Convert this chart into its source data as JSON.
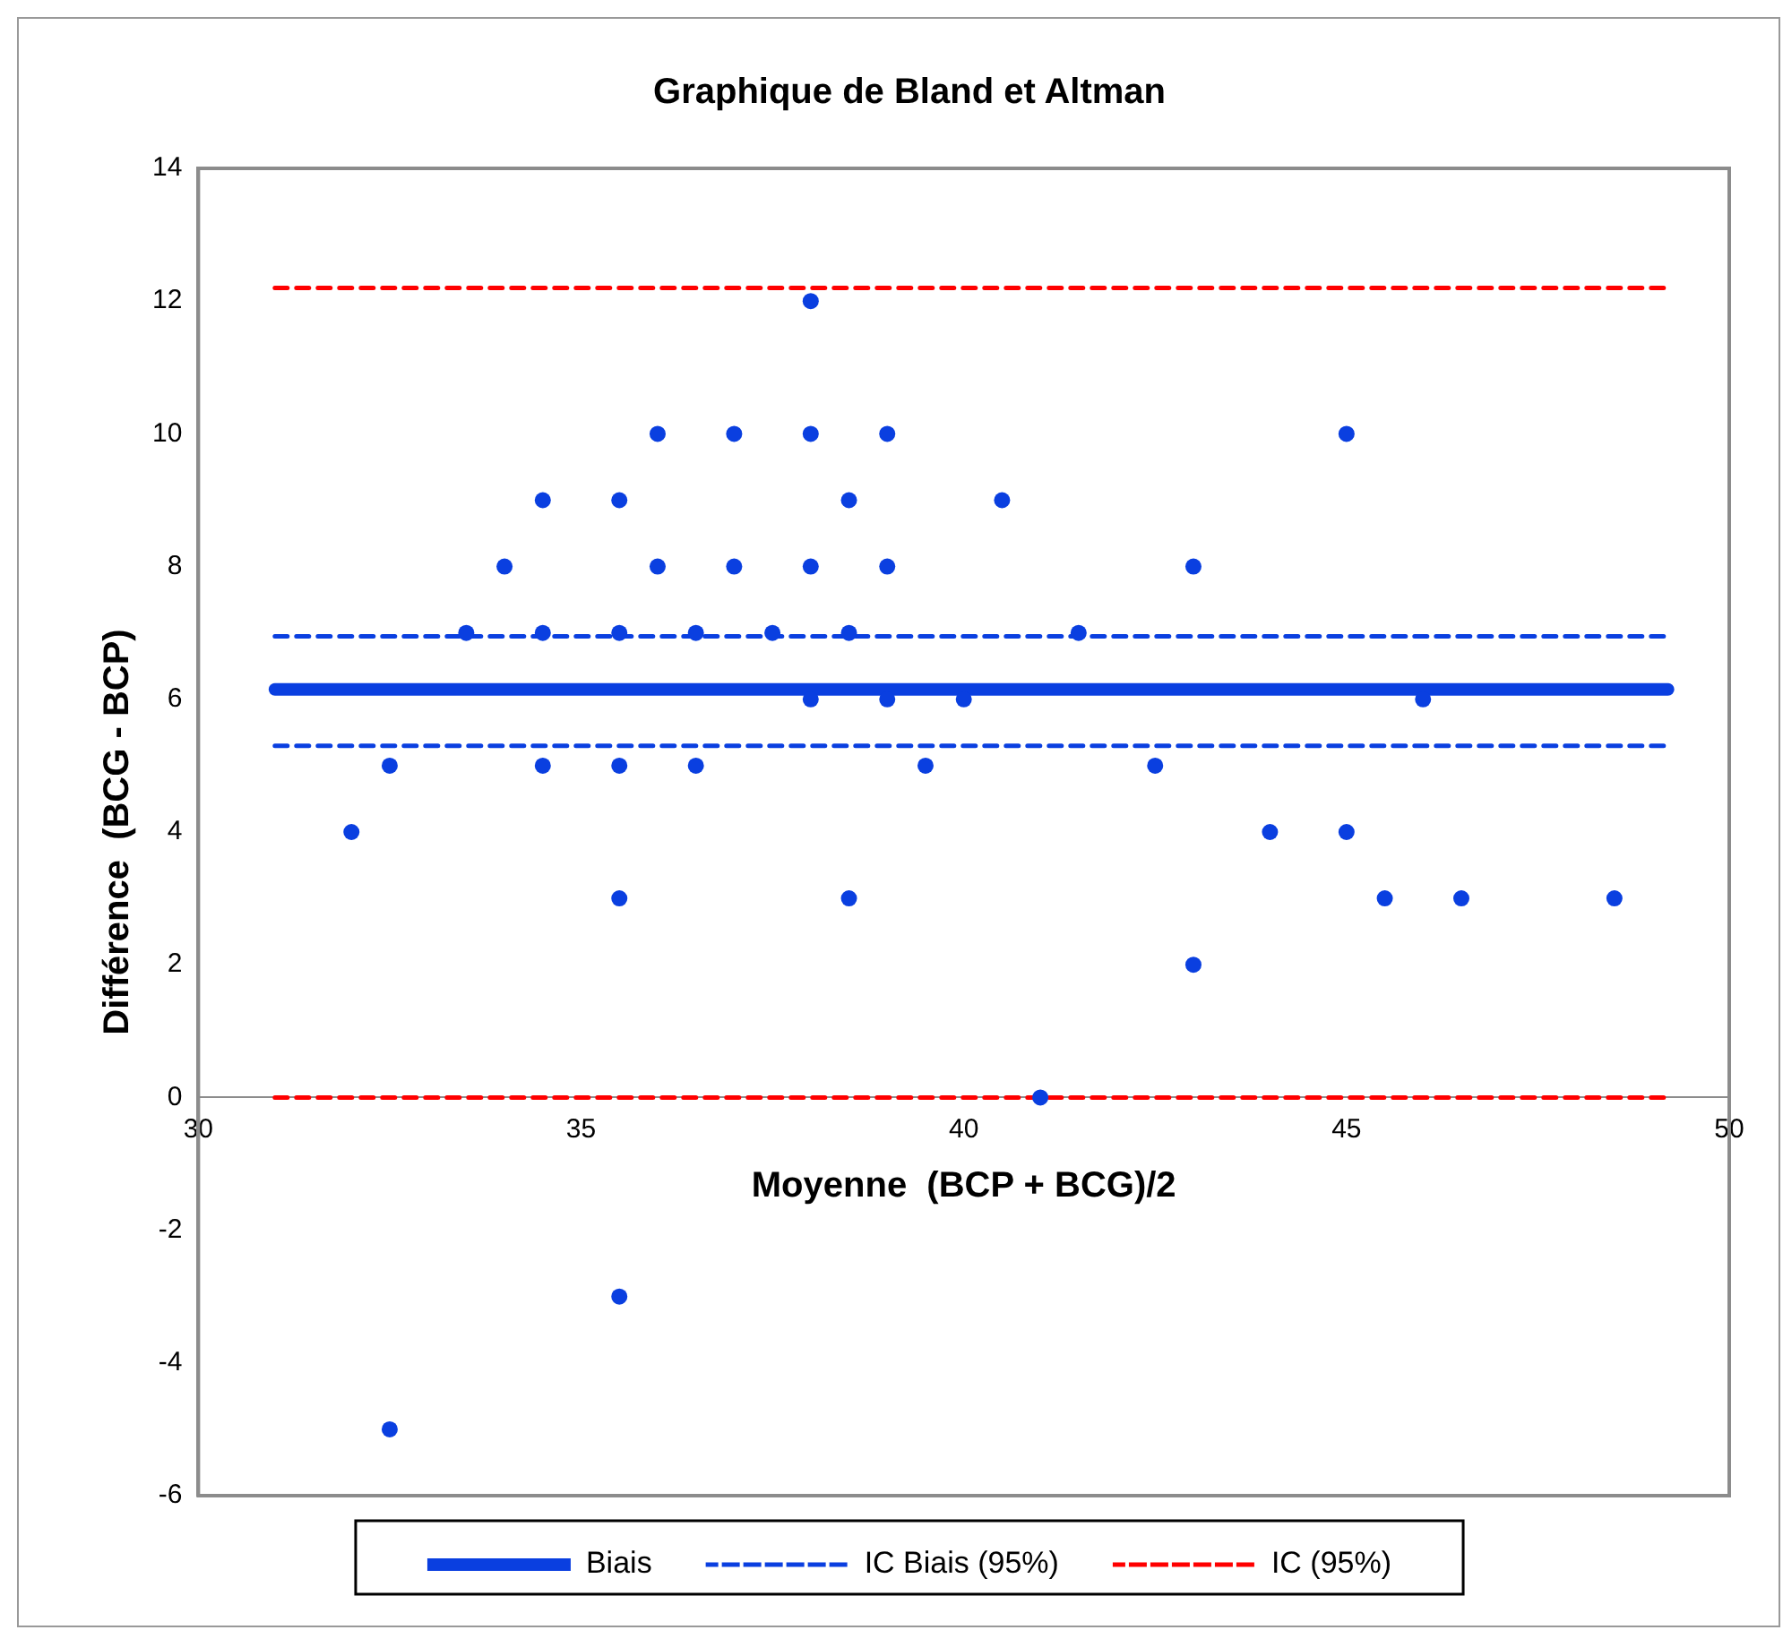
{
  "chart_data": {
    "type": "scatter",
    "title": "Graphique de Bland et Altman",
    "xlabel": "Moyenne  (BCP + BCG)/2",
    "ylabel": "Différence  (BCG - BCP)",
    "series": [
      {
        "type": "scatter",
        "color": "#0a3fe0",
        "x": [
          32,
          32.5,
          32.5,
          33.5,
          34,
          34.5,
          34.5,
          34.5,
          35.5,
          35.5,
          35.5,
          35.5,
          35.5,
          36,
          36,
          36.5,
          36.5,
          37,
          37,
          37.5,
          38,
          38,
          38,
          38,
          38.5,
          38.5,
          38.5,
          39,
          39,
          39,
          39.5,
          40,
          40.5,
          41,
          41.5,
          42.5,
          43,
          43,
          44,
          45,
          45,
          45.5,
          46,
          46.5,
          48.5
        ],
        "values": [
          4,
          5,
          -5,
          7,
          8,
          9,
          7,
          5,
          9,
          7,
          5,
          3,
          -3,
          10,
          8,
          7,
          5,
          10,
          8,
          7,
          12,
          10,
          8,
          6,
          9,
          7,
          3,
          10,
          8,
          6,
          5,
          6,
          9,
          0,
          7,
          5,
          8,
          2,
          4,
          10,
          4,
          3,
          6,
          3,
          3
        ],
        "marker": "circle"
      },
      {
        "type": "line",
        "name": "Biais",
        "color": "#0a3fe0",
        "x": [
          31,
          49.2
        ],
        "values": [
          6.15,
          6.15
        ],
        "line_style": "solid",
        "marker": "none"
      },
      {
        "type": "line",
        "name": "IC Biais (95%)",
        "color": "#0a3fe0",
        "x": [
          31,
          49.2
        ],
        "values": [
          6.95,
          6.95
        ],
        "line_style": "dashed",
        "marker": "none"
      },
      {
        "type": "line",
        "color": "#0a3fe0",
        "x": [
          31,
          49.2
        ],
        "values": [
          5.3,
          5.3
        ],
        "line_style": "dashed",
        "marker": "none"
      },
      {
        "type": "line",
        "name": "IC (95%)",
        "color": "#ff0000",
        "x": [
          31,
          49.2
        ],
        "values": [
          12.2,
          12.2
        ],
        "line_style": "dashed",
        "marker": "none"
      },
      {
        "type": "line",
        "color": "#ff0000",
        "x": [
          31,
          49.2
        ],
        "values": [
          0,
          0
        ],
        "line_style": "dashed",
        "marker": "none"
      }
    ],
    "xlim": [
      30,
      50
    ],
    "xticks": [
      30,
      35,
      40,
      45,
      50
    ],
    "ylim": [
      -6,
      14
    ],
    "yticks": [
      -6,
      -4,
      -2,
      0,
      2,
      4,
      6,
      8,
      10,
      12,
      14
    ],
    "grid": false,
    "legend": "bottom"
  }
}
